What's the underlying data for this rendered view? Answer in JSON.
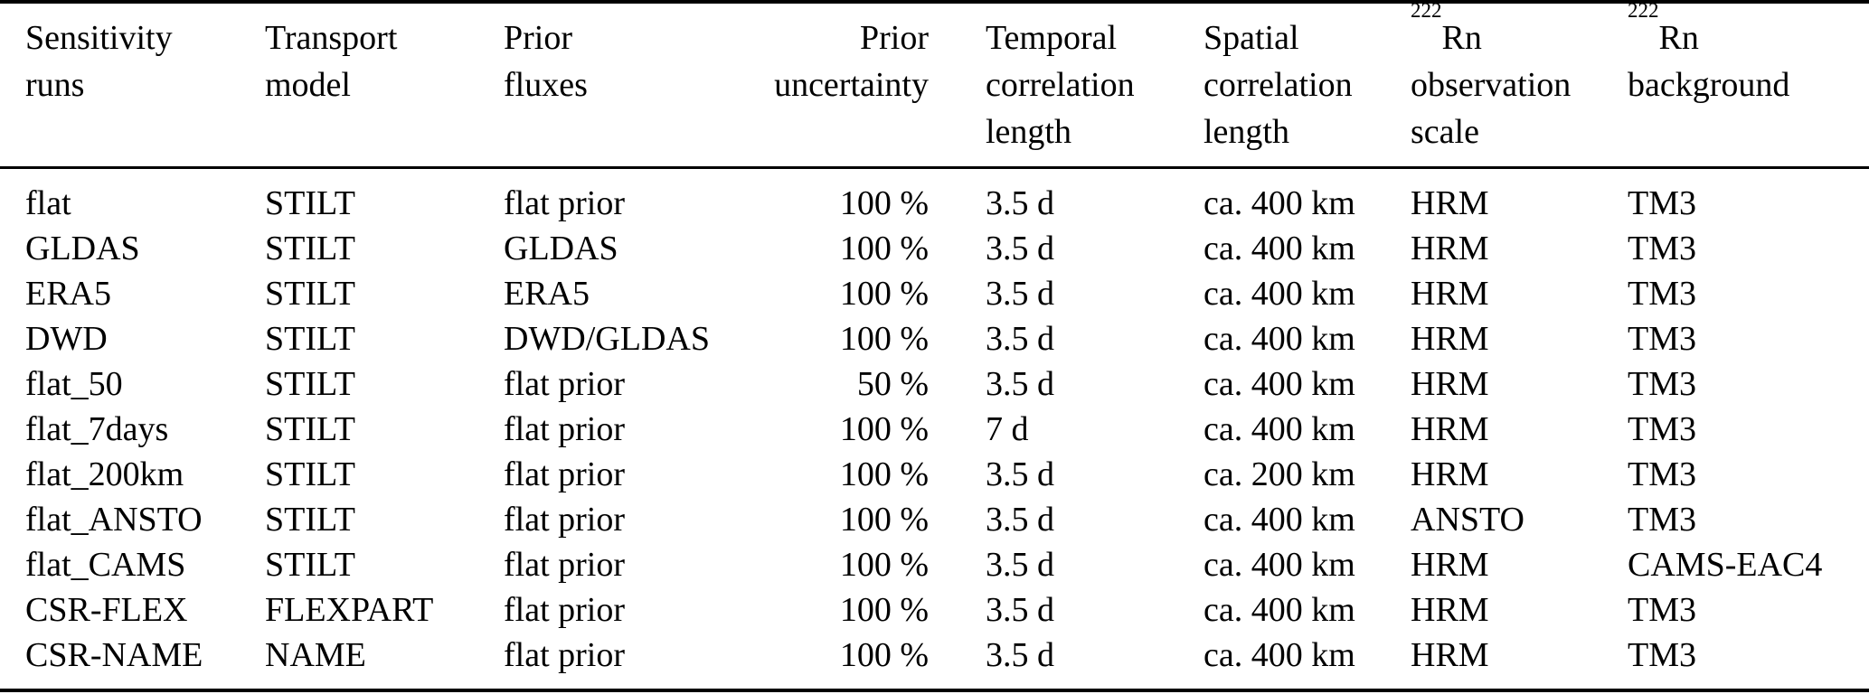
{
  "colors": {
    "text": "#000000",
    "background": "#ffffff",
    "rule": "#000000"
  },
  "table": {
    "name": "sensitivity-runs-table",
    "columns": [
      {
        "id": "sensitivity-runs",
        "lines": [
          "Sensitivity",
          "runs"
        ],
        "align": "left"
      },
      {
        "id": "transport-model",
        "lines": [
          "Transport",
          "model"
        ],
        "align": "left"
      },
      {
        "id": "prior-fluxes",
        "lines": [
          "Prior",
          "fluxes"
        ],
        "align": "left"
      },
      {
        "id": "prior-uncertainty",
        "lines": [
          "Prior",
          "uncertainty"
        ],
        "align": "right"
      },
      {
        "id": "temporal-correlation-length",
        "lines": [
          "Temporal",
          "correlation",
          "length"
        ],
        "align": "left"
      },
      {
        "id": "spatial-correlation-length",
        "lines": [
          "Spatial",
          "correlation",
          "length"
        ],
        "align": "left"
      },
      {
        "id": "rn222-observation-scale",
        "sup": "222",
        "lines": [
          "Rn",
          "observation",
          "scale"
        ],
        "align": "left"
      },
      {
        "id": "rn222-background",
        "sup": "222",
        "lines": [
          "Rn",
          "background"
        ],
        "align": "left"
      }
    ],
    "rows": [
      [
        "flat",
        "STILT",
        "flat prior",
        "100 %",
        "3.5 d",
        "ca. 400 km",
        "HRM",
        "TM3"
      ],
      [
        "GLDAS",
        "STILT",
        "GLDAS",
        "100 %",
        "3.5 d",
        "ca. 400 km",
        "HRM",
        "TM3"
      ],
      [
        "ERA5",
        "STILT",
        "ERA5",
        "100 %",
        "3.5 d",
        "ca. 400 km",
        "HRM",
        "TM3"
      ],
      [
        "DWD",
        "STILT",
        "DWD/GLDAS",
        "100 %",
        "3.5 d",
        "ca. 400 km",
        "HRM",
        "TM3"
      ],
      [
        "flat_50",
        "STILT",
        "flat prior",
        "50 %",
        "3.5 d",
        "ca. 400 km",
        "HRM",
        "TM3"
      ],
      [
        "flat_7days",
        "STILT",
        "flat prior",
        "100 %",
        "7 d",
        "ca. 400 km",
        "HRM",
        "TM3"
      ],
      [
        "flat_200km",
        "STILT",
        "flat prior",
        "100 %",
        "3.5 d",
        "ca. 200 km",
        "HRM",
        "TM3"
      ],
      [
        "flat_ANSTO",
        "STILT",
        "flat prior",
        "100 %",
        "3.5 d",
        "ca. 400 km",
        "ANSTO",
        "TM3"
      ],
      [
        "flat_CAMS",
        "STILT",
        "flat prior",
        "100 %",
        "3.5 d",
        "ca. 400 km",
        "HRM",
        "CAMS-EAC4"
      ],
      [
        "CSR-FLEX",
        "FLEXPART",
        "flat prior",
        "100 %",
        "3.5 d",
        "ca. 400 km",
        "HRM",
        "TM3"
      ],
      [
        "CSR-NAME",
        "NAME",
        "flat prior",
        "100 %",
        "3.5 d",
        "ca. 400 km",
        "HRM",
        "TM3"
      ]
    ]
  }
}
